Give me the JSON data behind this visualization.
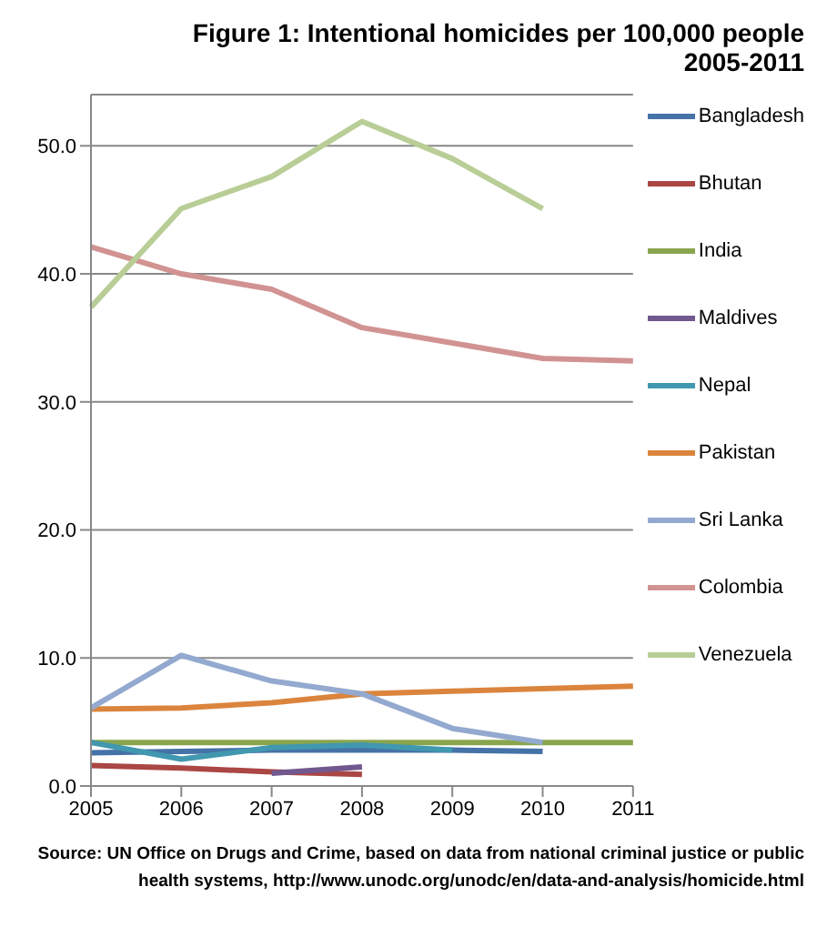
{
  "chart_data": {
    "type": "line",
    "title": "Figure 1:  Intentional homicides per 100,000 people",
    "subtitle": "2005-2011",
    "categories": [
      "2005",
      "2006",
      "2007",
      "2008",
      "2009",
      "2010",
      "2011"
    ],
    "series": [
      {
        "name": "Bangladesh",
        "color": "#4572a7",
        "values": [
          2.6,
          2.7,
          2.8,
          2.8,
          2.8,
          2.7,
          null
        ]
      },
      {
        "name": "Bhutan",
        "color": "#aa4643",
        "values": [
          1.6,
          1.4,
          1.1,
          0.9,
          null,
          null,
          null
        ]
      },
      {
        "name": "India",
        "color": "#89a54e",
        "values": [
          3.4,
          3.4,
          3.4,
          3.4,
          3.4,
          3.4,
          3.4
        ]
      },
      {
        "name": "Maldives",
        "color": "#71588f",
        "values": [
          null,
          null,
          1.0,
          1.5,
          null,
          null,
          null
        ]
      },
      {
        "name": "Nepal",
        "color": "#4198af",
        "values": [
          3.4,
          2.1,
          3.0,
          3.2,
          2.8,
          null,
          null
        ]
      },
      {
        "name": "Pakistan",
        "color": "#db843d",
        "values": [
          6.0,
          6.1,
          6.5,
          7.2,
          7.4,
          7.6,
          7.8
        ]
      },
      {
        "name": "Sri Lanka",
        "color": "#93a9cf",
        "values": [
          6.1,
          10.2,
          8.2,
          7.2,
          4.5,
          3.4,
          null
        ]
      },
      {
        "name": "Colombia",
        "color": "#d19392",
        "values": [
          42.1,
          40.0,
          38.8,
          35.8,
          34.6,
          33.4,
          33.2
        ]
      },
      {
        "name": "Venezuela",
        "color": "#b9cd96",
        "values": [
          37.4,
          45.1,
          47.6,
          51.9,
          49.0,
          45.1,
          null
        ]
      }
    ],
    "ylim": [
      0,
      54
    ],
    "yticks": [
      {
        "value": 0,
        "label": "0.0"
      },
      {
        "value": 10,
        "label": "10.0"
      },
      {
        "value": 20,
        "label": "20.0"
      },
      {
        "value": 30,
        "label": "30.0"
      },
      {
        "value": 40,
        "label": "40.0"
      },
      {
        "value": 50,
        "label": "50.0"
      }
    ],
    "grid": "y",
    "legend": "right",
    "marker": "none",
    "line_style": "solid",
    "annotations": [
      "Source:  UN Office on Drugs and Crime, based on data from national criminal justice or public health systems, http://www.unodc.org/unodc/en/data-and-analysis/homicide.html"
    ]
  }
}
